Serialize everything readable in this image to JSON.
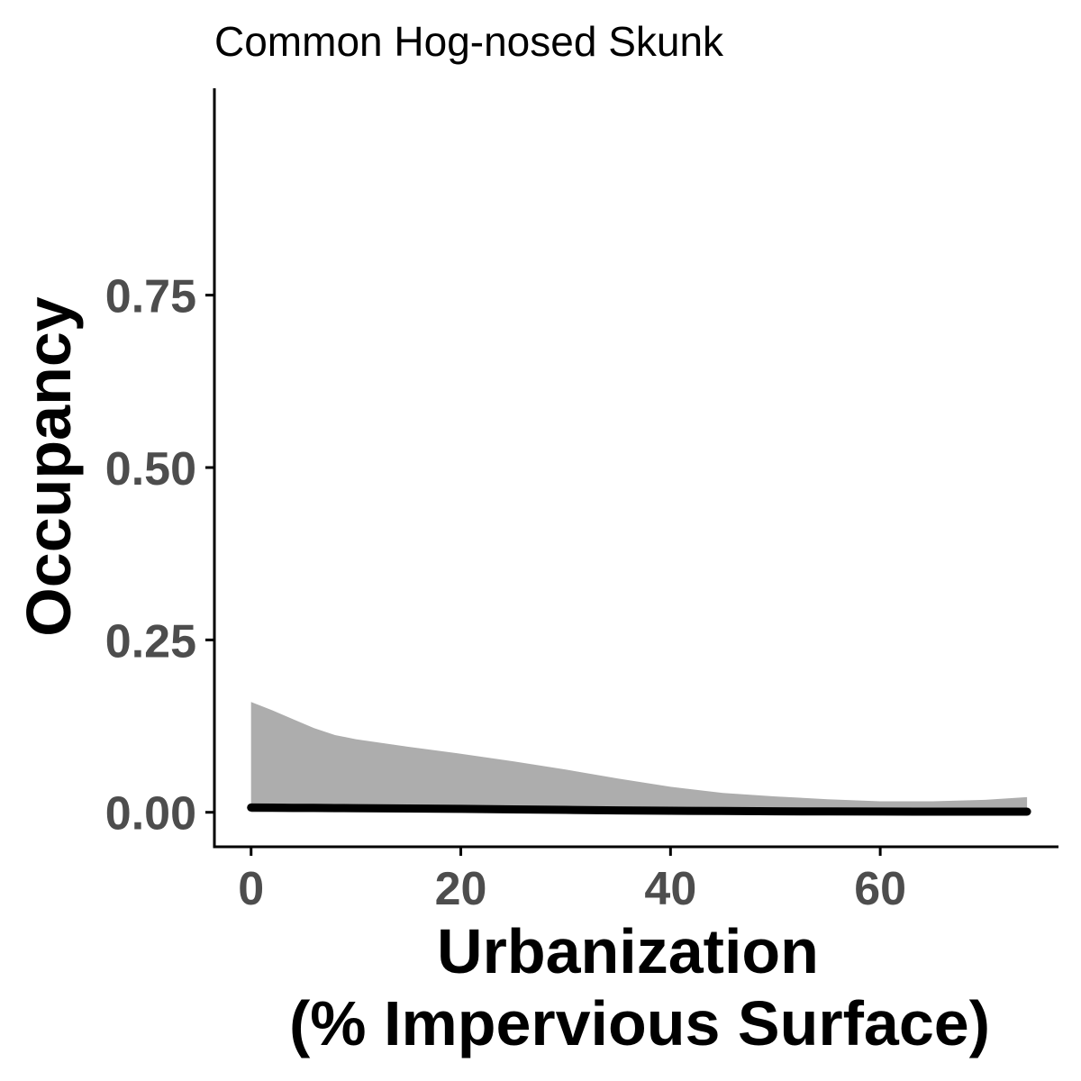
{
  "chart_data": {
    "type": "line",
    "title": "Common Hog-nosed Skunk",
    "xlabel_lines": [
      "Urbanization",
      "(% Impervious Surface)"
    ],
    "ylabel": "Occupancy",
    "xlim": [
      -3.5,
      77
    ],
    "ylim": [
      -0.05,
      1.05
    ],
    "x_ticks": [
      0,
      20,
      40,
      60
    ],
    "y_ticks": [
      0.0,
      0.25,
      0.5,
      0.75
    ],
    "y_tick_labels": [
      "0.00",
      "0.25",
      "0.50",
      "0.75"
    ],
    "grid": false,
    "colors": {
      "line": "#000000",
      "ribbon": "#adadad",
      "axis": "#000000",
      "tick_text": "#4d4d4d"
    },
    "series": [
      {
        "x": [
          0,
          2,
          4,
          6,
          8,
          10,
          15,
          20,
          25,
          30,
          35,
          40,
          45,
          50,
          55,
          60,
          65,
          70,
          74
        ],
        "y": [
          0.007,
          0.0068,
          0.0066,
          0.0064,
          0.0062,
          0.006,
          0.0055,
          0.005,
          0.0042,
          0.0035,
          0.0028,
          0.0022,
          0.0018,
          0.0015,
          0.0012,
          0.0011,
          0.001,
          0.001,
          0.001
        ],
        "lower": [
          0,
          0,
          0,
          0,
          0,
          0,
          0,
          0,
          0,
          0,
          0,
          0,
          0,
          0,
          0,
          0,
          0,
          0,
          0
        ],
        "upper": [
          0.16,
          0.148,
          0.135,
          0.122,
          0.112,
          0.106,
          0.095,
          0.085,
          0.074,
          0.062,
          0.049,
          0.037,
          0.028,
          0.023,
          0.019,
          0.016,
          0.016,
          0.018,
          0.022
        ]
      }
    ]
  }
}
